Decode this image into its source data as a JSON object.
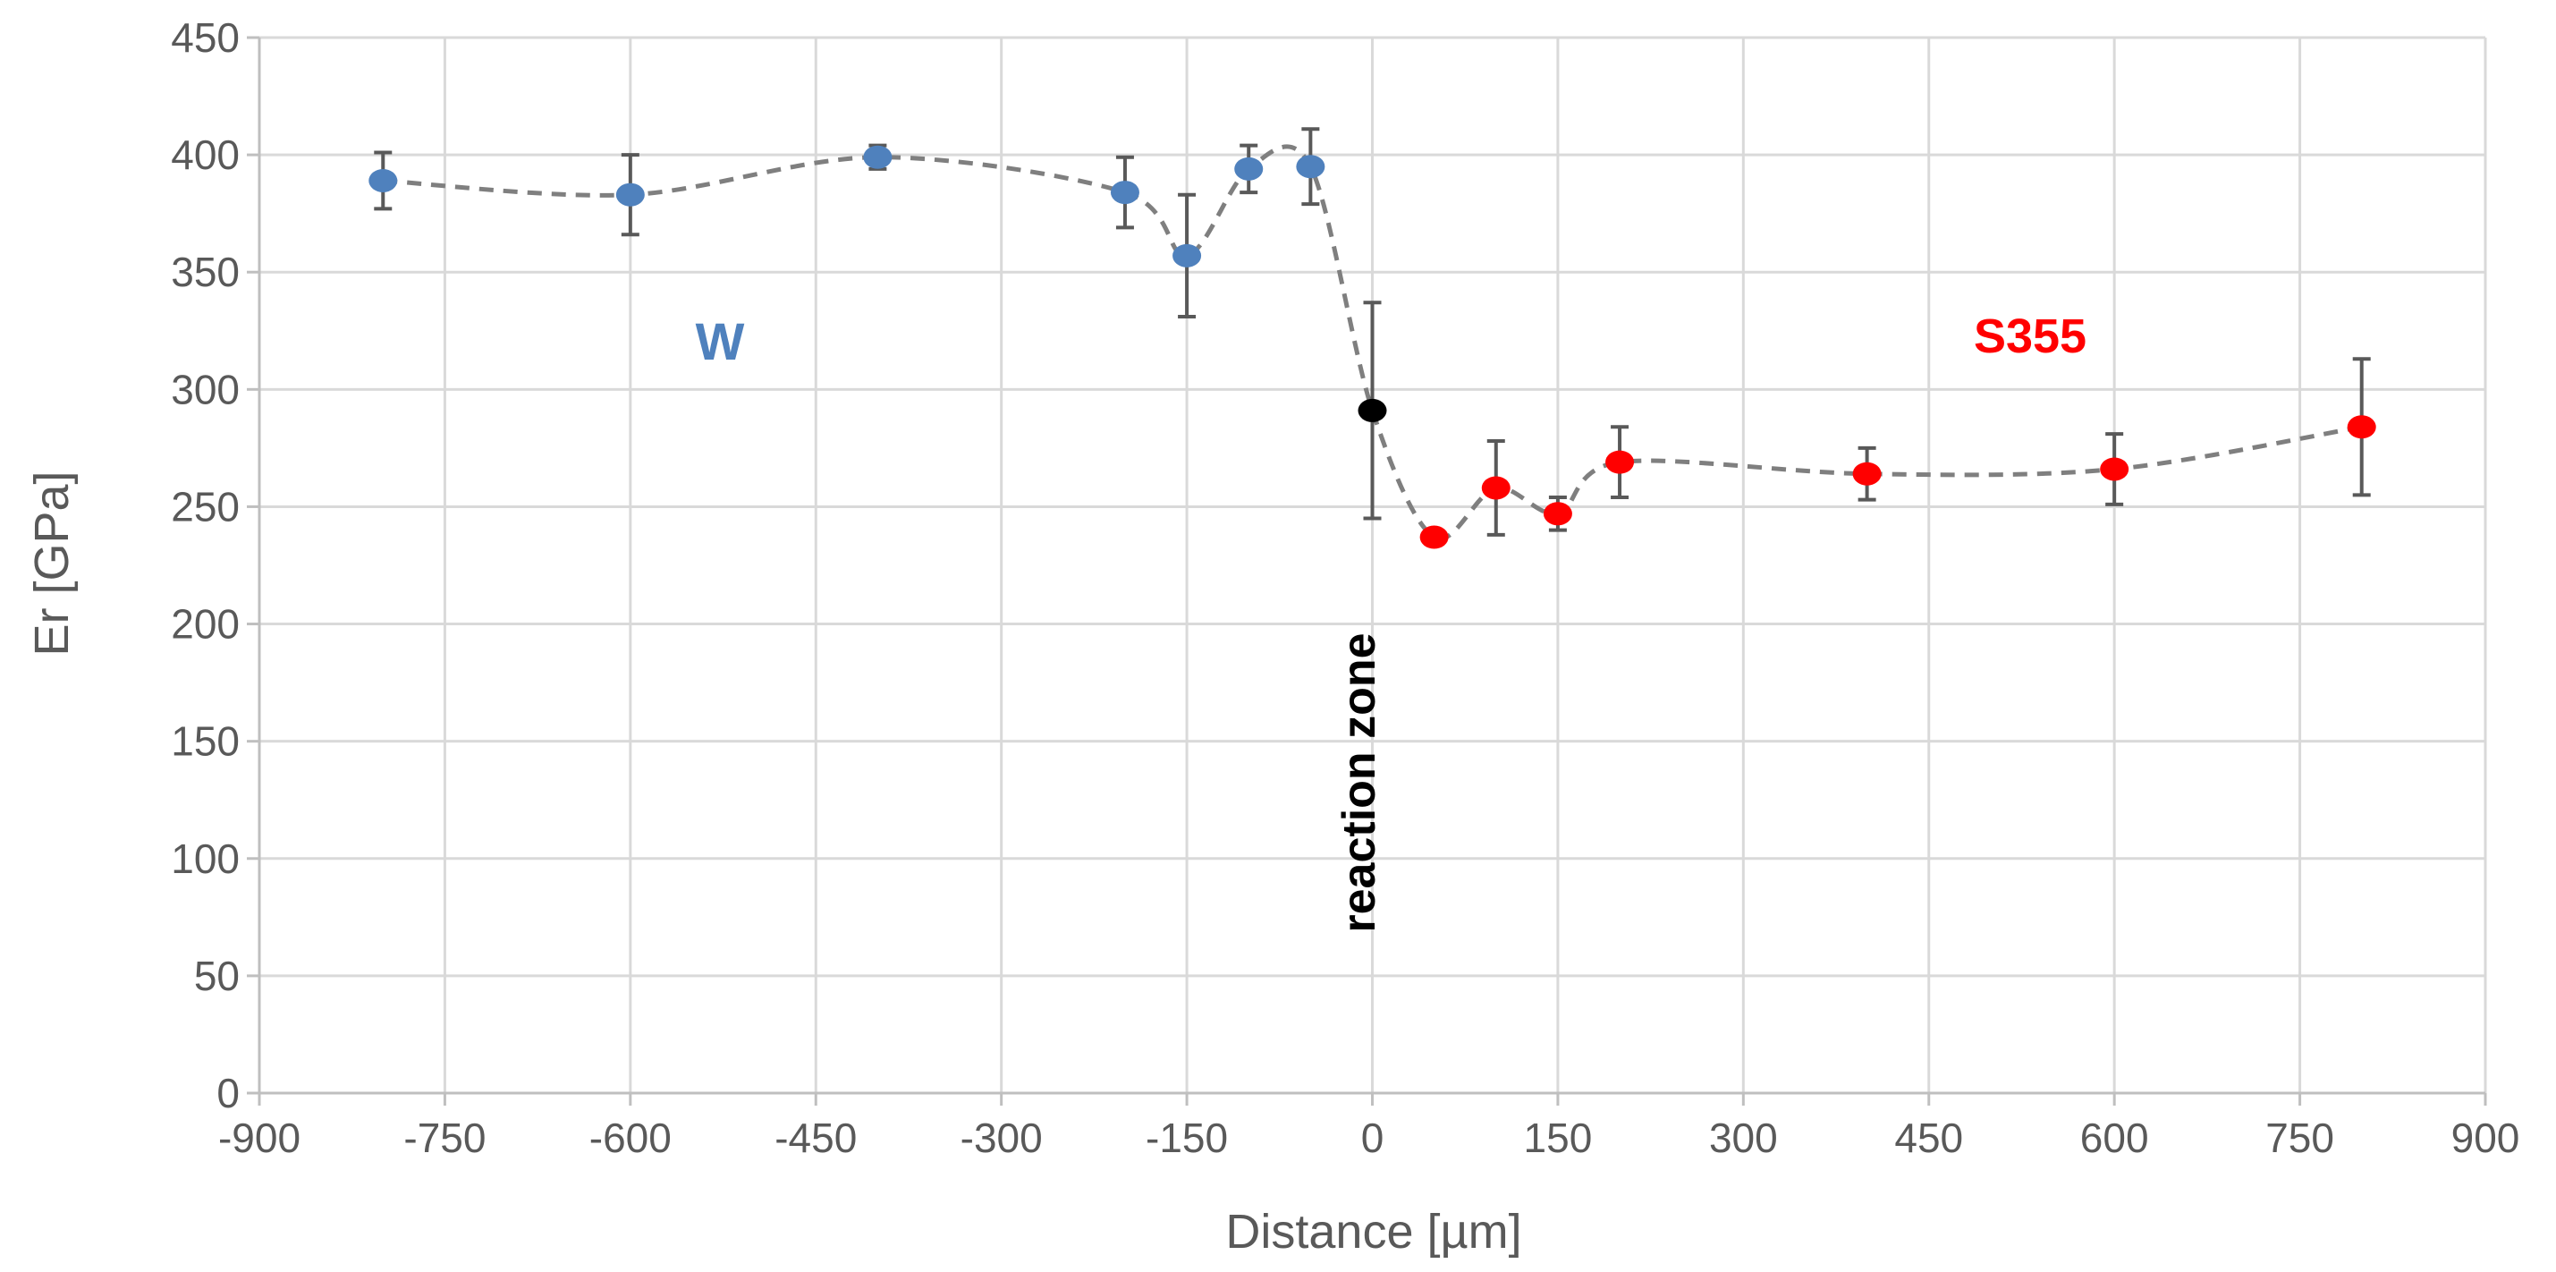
{
  "chart_data": {
    "type": "scatter",
    "title": "",
    "xlabel": "Distance [µm]",
    "ylabel": "Er [GPa]",
    "xlim": [
      -900,
      900
    ],
    "ylim": [
      0,
      450
    ],
    "x_ticks": [
      -900,
      -750,
      -600,
      -450,
      -300,
      -150,
      0,
      150,
      300,
      450,
      600,
      750,
      900
    ],
    "y_ticks": [
      0,
      50,
      100,
      150,
      200,
      250,
      300,
      350,
      400,
      450
    ],
    "grid": true,
    "trendline": "dashed gray line through all points",
    "series": [
      {
        "name": "W",
        "color": "#4f81bd",
        "points": [
          {
            "x": -800,
            "y": 389,
            "err": 12
          },
          {
            "x": -600,
            "y": 383,
            "err": 17
          },
          {
            "x": -400,
            "y": 399,
            "err": 5
          },
          {
            "x": -200,
            "y": 384,
            "err": 15
          },
          {
            "x": -150,
            "y": 357,
            "err": 26
          },
          {
            "x": -100,
            "y": 394,
            "err": 10
          },
          {
            "x": -50,
            "y": 395,
            "err": 16
          }
        ]
      },
      {
        "name": "reaction zone",
        "color": "#000000",
        "points": [
          {
            "x": 0,
            "y": 291,
            "err": 46
          }
        ]
      },
      {
        "name": "S355",
        "color": "#ff0000",
        "points": [
          {
            "x": 50,
            "y": 237,
            "err": 3
          },
          {
            "x": 100,
            "y": 258,
            "err": 20
          },
          {
            "x": 150,
            "y": 247,
            "err": 7
          },
          {
            "x": 200,
            "y": 269,
            "err": 15
          },
          {
            "x": 400,
            "y": 264,
            "err": 11
          },
          {
            "x": 600,
            "y": 266,
            "err": 15
          },
          {
            "x": 800,
            "y": 284,
            "err": 29
          }
        ]
      }
    ],
    "annotations": [
      {
        "text": "W",
        "color": "#4f81bd"
      },
      {
        "text": "S355",
        "color": "#ff0000"
      },
      {
        "text": "reaction zone",
        "color": "#000000",
        "orientation": "vertical"
      }
    ]
  }
}
